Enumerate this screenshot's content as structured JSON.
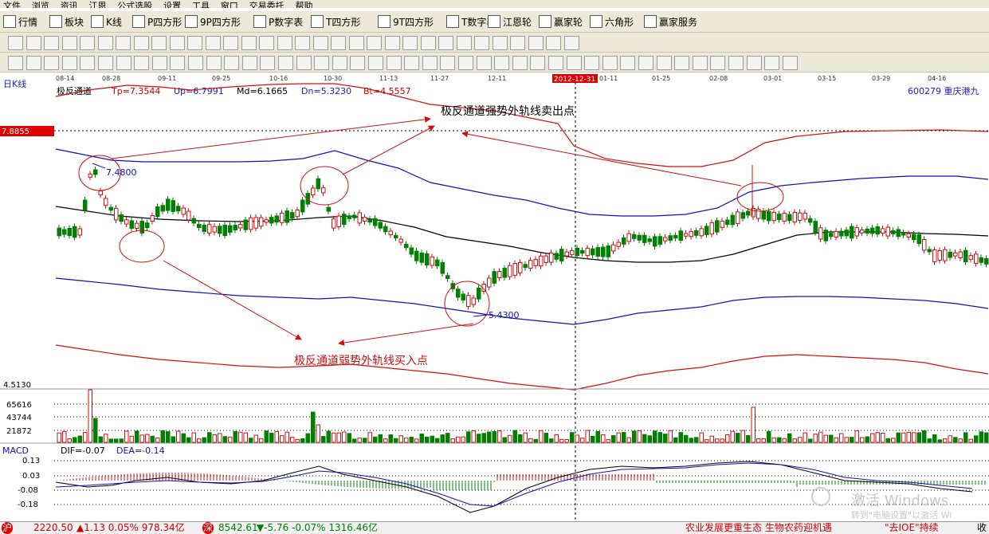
{
  "menu": [
    "文件",
    "浏览",
    "资讯",
    "江恩",
    "公式选股",
    "设置",
    "工具",
    "窗口",
    "交易委托",
    "帮助"
  ],
  "toolbar1": [
    {
      "icon": "table-icon",
      "label": "行情"
    },
    {
      "icon": "grid-icon",
      "label": "板块"
    },
    {
      "icon": "candle-icon",
      "label": "K线"
    },
    {
      "icon": "ps-icon",
      "label": "P四方形"
    },
    {
      "icon": "p9-icon",
      "label": "9P四方形"
    },
    {
      "icon": "pn-icon",
      "label": "P数字表"
    },
    {
      "icon": "ts-icon",
      "label": "T四方形"
    },
    {
      "icon": "t9-icon",
      "label": "9T四方形"
    },
    {
      "icon": "tn-icon",
      "label": "T数字表"
    },
    {
      "icon": "target-icon",
      "label": "江恩轮"
    },
    {
      "icon": "wheel-icon",
      "label": "赢家轮"
    },
    {
      "icon": "hexagon-icon",
      "label": "六角形"
    },
    {
      "icon": "dollar-icon",
      "label": "赢家服务"
    }
  ],
  "chart": {
    "period": "日K线",
    "indicator": "极反通道",
    "tp": "Tp=7.3544",
    "up": "Up=6.7991",
    "md": "Md=6.1665",
    "dn": "Dn=5.3230",
    "bt": "Bt=4.5557",
    "stock": "600279  重庆港九",
    "price_tag": "7.8855",
    "high_label": "7.4800",
    "low_label": "5.4300",
    "bottom_label": "4.5130",
    "sell_annotation": "极反通道强势外轨线卖出点",
    "buy_annotation": "极反通道弱势外轨线买入点",
    "dates": [
      "08-14",
      "08-28",
      "09-11",
      "09-25",
      "10-16",
      "10-30",
      "11-13",
      "11-27",
      "12-11",
      "12",
      "01-11",
      "01-25",
      "02-08",
      "03-01",
      "03-15",
      "03-29",
      "04-16"
    ],
    "date_highlight": "2012-12-31",
    "vol_ticks": [
      "65616",
      "43744",
      "21872"
    ],
    "macd_title": "MACD",
    "dif": "DIF=-0.07",
    "dea": "DEA=-0.14",
    "macd_ticks": [
      "0.13",
      "0.03",
      "-0.08",
      "-0.18"
    ],
    "watermark_main": "激活 Windows",
    "watermark_sub": "转到\"电脑设置\"以激活 Wi"
  },
  "status": {
    "sh_badge": "沪",
    "sh": "2220.50",
    "sh_change": "▲1.13 0.05% 978.34亿",
    "sz_badge": "深",
    "sz": "8542.61",
    "sz_change": "▼-5.76 -0.07% 1316.46亿",
    "news1": "农业发展更重生态  生物农药迎机遇",
    "news2": "\"去IOE\"持续",
    "collapse": "收"
  }
}
